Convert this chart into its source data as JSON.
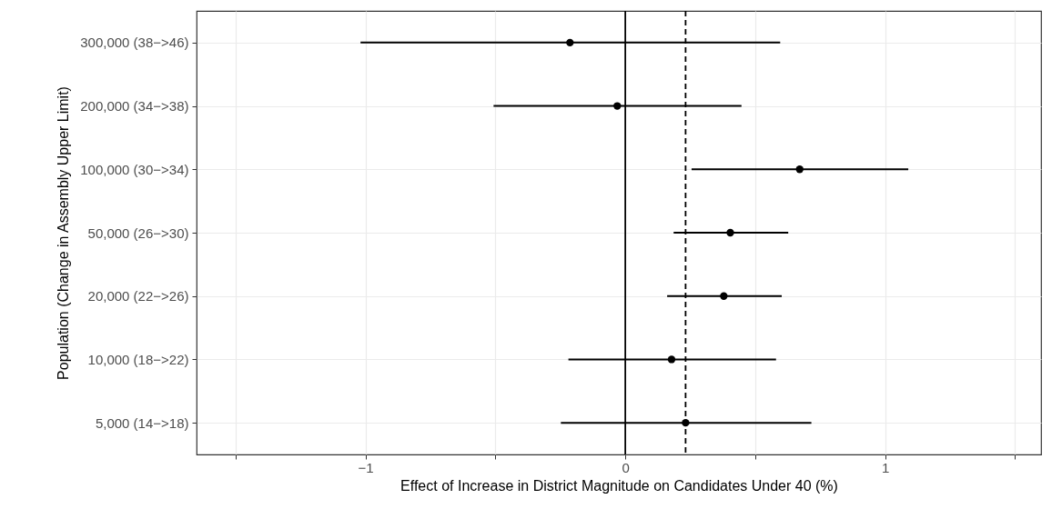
{
  "chart_data": {
    "type": "scatter",
    "xlabel": "Effect of Increase in District Magnitude on Candidates Under 40 (%)",
    "ylabel": "Population (Change in Assembly Upper Limit)",
    "orientation": "horizontal",
    "categories": [
      "300,000 (38−>46)",
      "200,000 (34−>38)",
      "100,000 (30−>34)",
      "50,000 (26−>30)",
      "20,000 (22−>26)",
      "10,000 (18−>22)",
      "5,000 (14−>18)"
    ],
    "series": [
      {
        "color": "#000000",
        "values": [
          -0.213,
          -0.031,
          0.671,
          0.404,
          0.379,
          0.178,
          0.232
        ],
        "errors": [
          [
            -1.019,
            0.596
          ],
          [
            -0.507,
            0.447
          ],
          [
            0.255,
            1.089
          ],
          [
            0.186,
            0.627
          ],
          [
            0.161,
            0.602
          ],
          [
            -0.219,
            0.58
          ],
          [
            -0.248,
            0.716
          ]
        ]
      }
    ],
    "xlim": [
      -1.65,
      1.6
    ],
    "xticks": [
      {
        "value": -1.5,
        "label": null
      },
      {
        "value": -1,
        "label": "−1"
      },
      {
        "value": -0.5,
        "label": null
      },
      0,
      {
        "value": 0.5,
        "label": null
      },
      1,
      {
        "value": 1.5,
        "label": null
      }
    ],
    "ref_lines": [
      {
        "axis": "x",
        "value": 0,
        "color": "#000000",
        "line_style": "solid"
      },
      {
        "axis": "x",
        "value": 0.232,
        "color": "#000000",
        "line_style": "dashed"
      }
    ],
    "grid": true,
    "marker": "circle"
  }
}
